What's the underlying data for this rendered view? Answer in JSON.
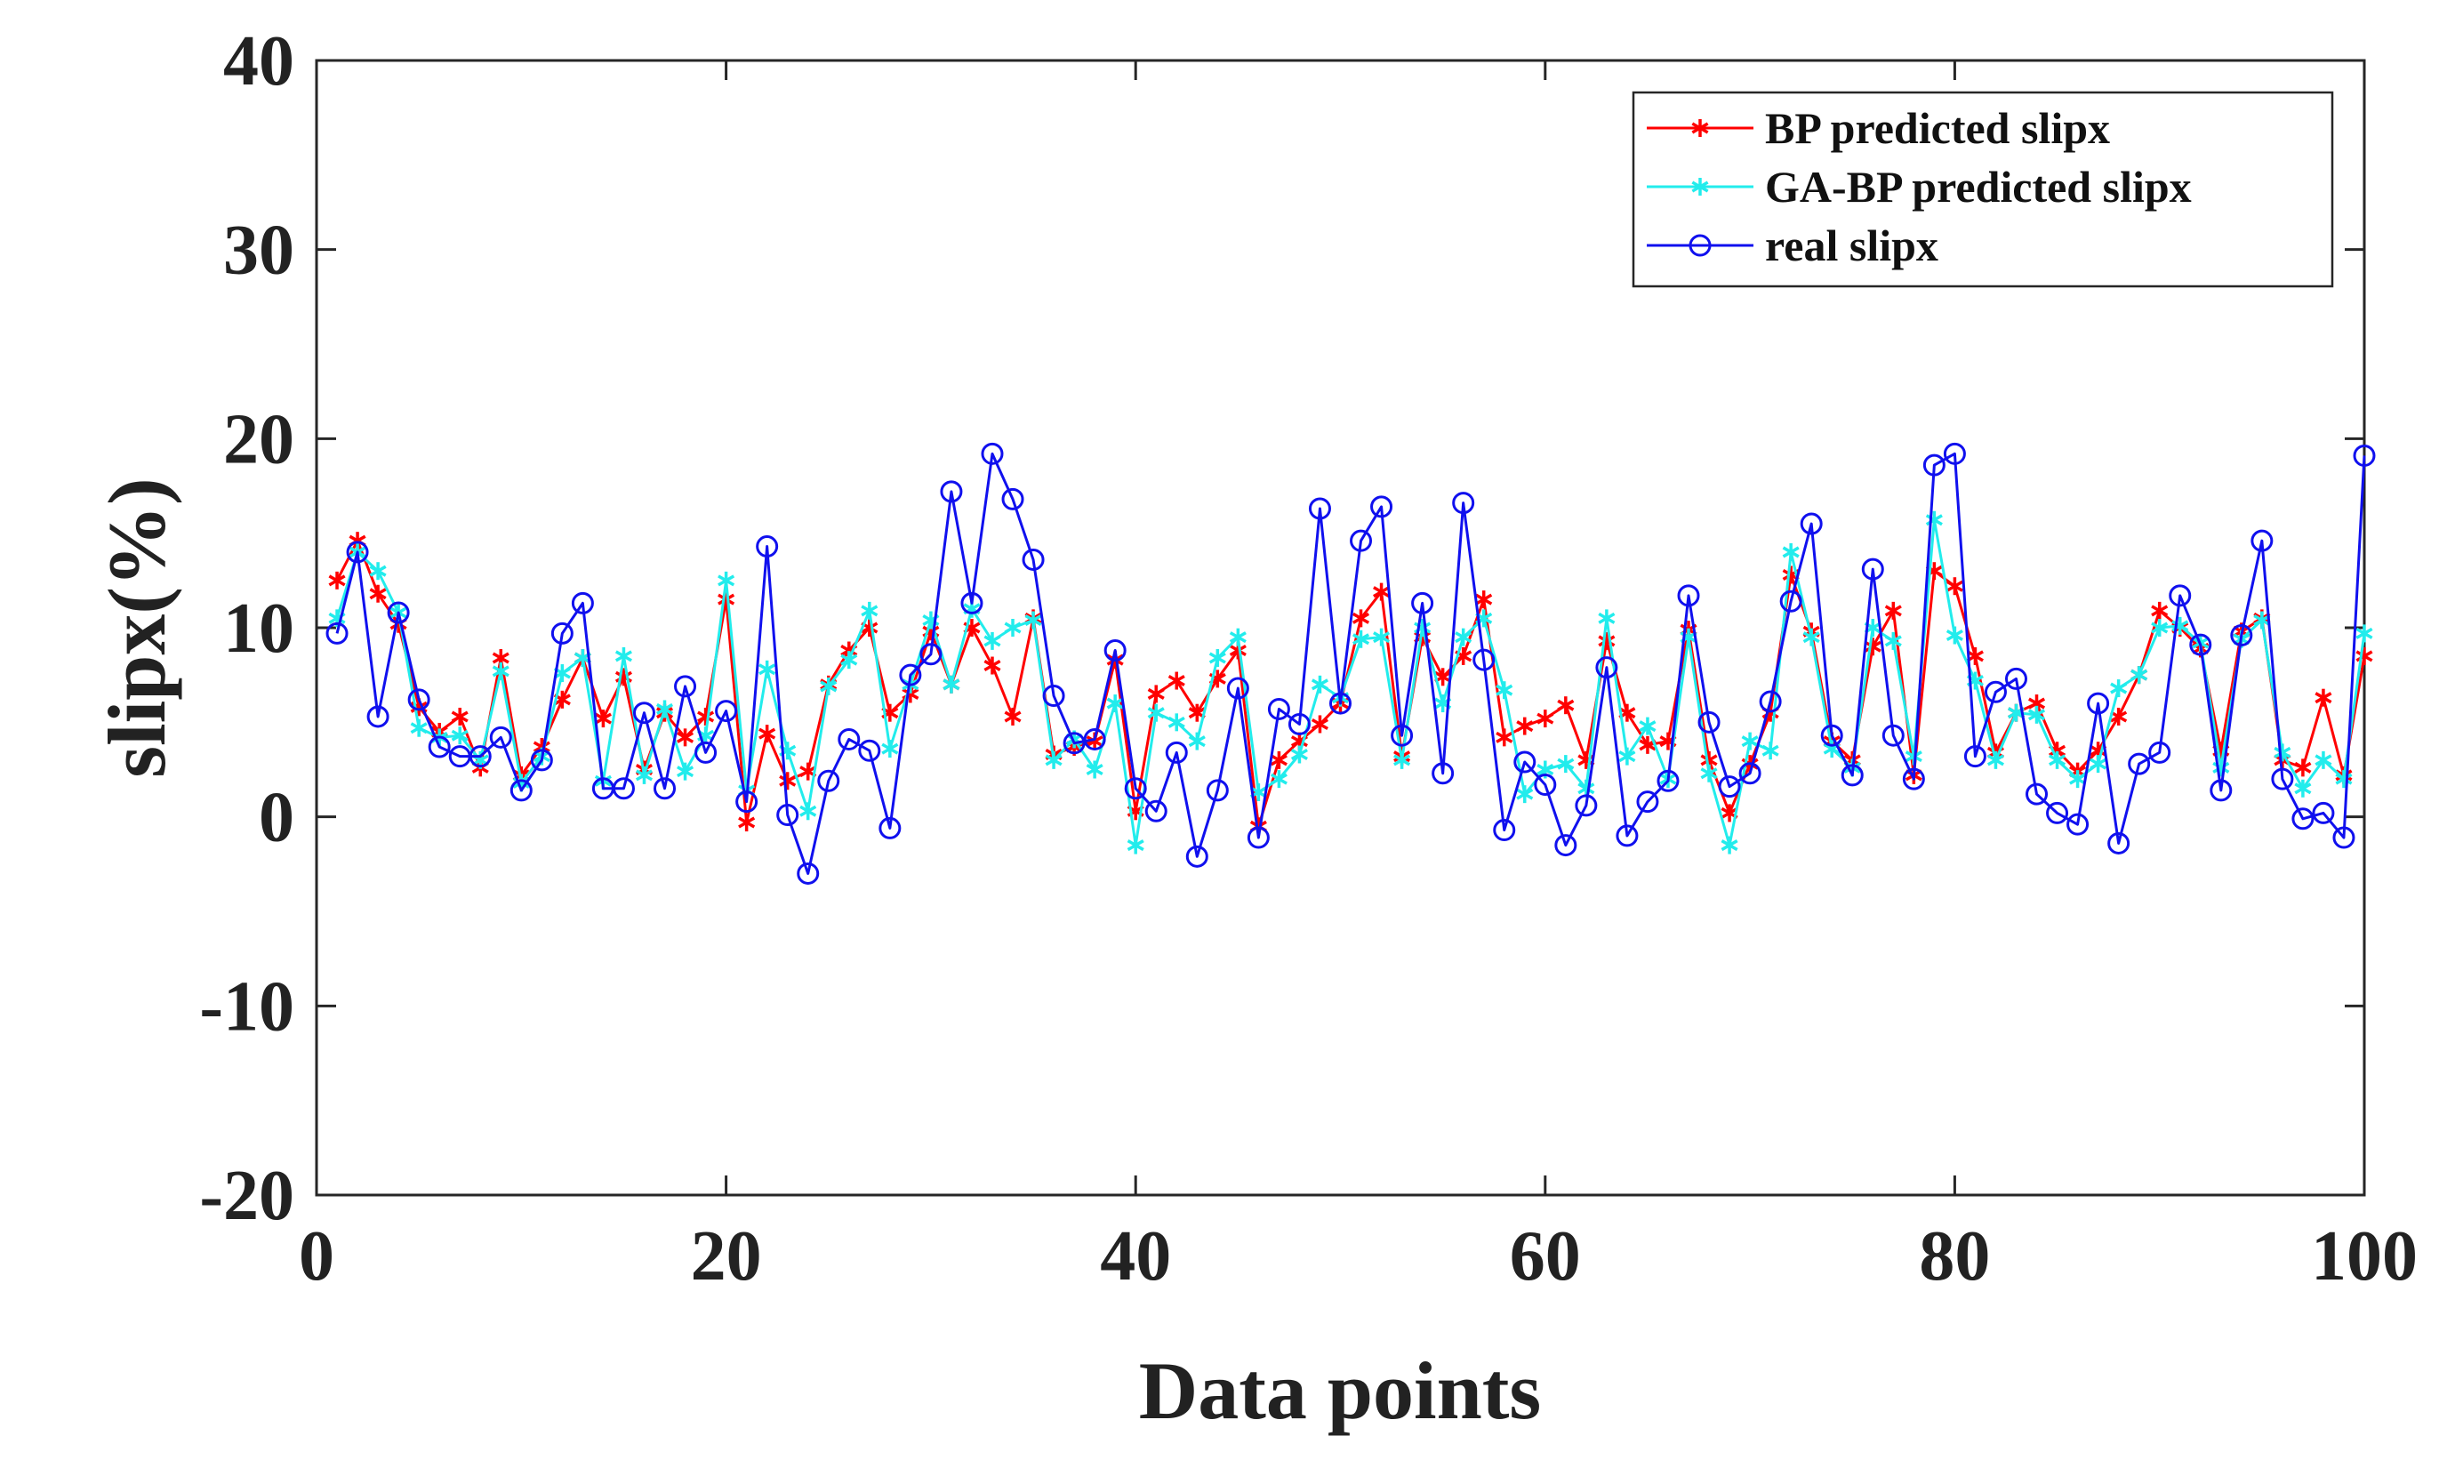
{
  "chart_data": {
    "type": "line",
    "title": "",
    "xlabel": "Data points",
    "ylabel": "slipx(%)",
    "xlim": [
      0,
      100
    ],
    "ylim": [
      -20,
      40
    ],
    "xticks": [
      0,
      20,
      40,
      60,
      80,
      100
    ],
    "yticks": [
      -20,
      -10,
      0,
      10,
      20,
      30,
      40
    ],
    "xtick_labels": [
      "0",
      "20",
      "40",
      "60",
      "80",
      "100"
    ],
    "ytick_labels": [
      "-20",
      "-10",
      "0",
      "10",
      "20",
      "30",
      "40"
    ],
    "grid": false,
    "legend_position": "top-right",
    "x": [
      1,
      2,
      3,
      4,
      5,
      6,
      7,
      8,
      9,
      10,
      11,
      12,
      13,
      14,
      15,
      16,
      17,
      18,
      19,
      20,
      21,
      22,
      23,
      24,
      25,
      26,
      27,
      28,
      29,
      30,
      31,
      32,
      33,
      34,
      35,
      36,
      37,
      38,
      39,
      40,
      41,
      42,
      43,
      44,
      45,
      46,
      47,
      48,
      49,
      50,
      51,
      52,
      53,
      54,
      55,
      56,
      57,
      58,
      59,
      60,
      61,
      62,
      63,
      64,
      65,
      66,
      67,
      68,
      69,
      70,
      71,
      72,
      73,
      74,
      75,
      76,
      77,
      78,
      79,
      80,
      81,
      82,
      83,
      84,
      85,
      86,
      87,
      88,
      89,
      90,
      91,
      92,
      93,
      94,
      95,
      96,
      97,
      98,
      99,
      100
    ],
    "series": [
      {
        "name": "BP predicted slipx",
        "color": "#ff0000",
        "marker": "asterisk",
        "values": [
          12.5,
          14.6,
          11.8,
          10.2,
          5.8,
          4.5,
          5.3,
          2.6,
          8.4,
          2.2,
          3.7,
          6.2,
          8.4,
          5.2,
          7.4,
          2.5,
          5.5,
          4.2,
          5.3,
          11.5,
          -0.3,
          4.4,
          1.9,
          2.4,
          7.0,
          8.8,
          10.0,
          5.5,
          6.5,
          9.8,
          7.0,
          10.0,
          8.0,
          5.3,
          10.5,
          3.3,
          3.7,
          4.0,
          8.3,
          0.3,
          6.5,
          7.2,
          5.5,
          7.3,
          8.8,
          -0.5,
          3.0,
          4.0,
          4.9,
          6.0,
          10.5,
          11.9,
          3.2,
          9.5,
          7.4,
          8.5,
          11.5,
          4.2,
          4.8,
          5.2,
          5.9,
          3.0,
          9.3,
          5.5,
          3.8,
          4.0,
          9.9,
          3.0,
          0.2,
          2.8,
          5.5,
          12.8,
          9.8,
          4.0,
          3.0,
          9.0,
          10.9,
          2.2,
          13.0,
          12.2,
          8.5,
          3.4,
          5.5,
          6.0,
          3.5,
          2.4,
          3.5,
          5.3,
          7.5,
          10.9,
          10.0,
          8.9,
          3.5,
          9.8,
          10.5,
          3.0,
          2.6,
          6.3,
          2.2,
          8.5
        ]
      },
      {
        "name": "GA-BP  predicted slipx",
        "color": "#22ecec",
        "marker": "asterisk",
        "values": [
          10.5,
          14.0,
          13.0,
          10.8,
          4.7,
          4.2,
          4.3,
          3.0,
          7.7,
          1.8,
          3.2,
          7.6,
          8.4,
          1.9,
          8.5,
          2.2,
          5.7,
          2.4,
          4.3,
          12.5,
          1.4,
          7.8,
          3.5,
          0.3,
          6.9,
          8.3,
          10.9,
          3.6,
          7.0,
          10.4,
          7.0,
          11.0,
          9.3,
          10.0,
          10.4,
          3.0,
          4.1,
          2.5,
          6.0,
          -1.5,
          5.5,
          5.0,
          4.0,
          8.4,
          9.5,
          1.3,
          2.0,
          3.3,
          7.0,
          6.3,
          9.4,
          9.5,
          3.0,
          10.0,
          6.0,
          9.5,
          10.5,
          6.7,
          1.2,
          2.5,
          2.8,
          1.5,
          10.5,
          3.2,
          4.8,
          2.0,
          9.5,
          2.3,
          -1.5,
          4.0,
          3.5,
          14.0,
          9.5,
          3.6,
          2.6,
          10.0,
          9.3,
          3.2,
          15.7,
          9.6,
          7.2,
          3.0,
          5.5,
          5.4,
          3.0,
          2.0,
          2.8,
          6.8,
          7.5,
          10.0,
          10.1,
          9.2,
          2.6,
          9.4,
          10.4,
          3.4,
          1.5,
          3.0,
          2.0,
          9.7
        ]
      },
      {
        "name": "real slipx",
        "color": "#1010ee",
        "marker": "circle",
        "values": [
          9.7,
          14.0,
          5.3,
          10.8,
          6.2,
          3.7,
          3.2,
          3.2,
          4.2,
          1.4,
          3.0,
          9.7,
          11.3,
          1.5,
          1.5,
          5.5,
          1.5,
          6.9,
          3.4,
          5.6,
          0.8,
          14.3,
          0.1,
          -3.0,
          1.9,
          4.1,
          3.5,
          -0.6,
          7.5,
          8.6,
          17.2,
          11.3,
          19.2,
          16.8,
          13.6,
          6.4,
          3.9,
          4.1,
          8.8,
          1.5,
          0.3,
          3.4,
          -2.1,
          1.4,
          6.8,
          -1.1,
          5.7,
          4.9,
          16.3,
          6.0,
          14.6,
          16.4,
          4.3,
          11.3,
          2.3,
          16.6,
          8.3,
          -0.7,
          2.9,
          1.7,
          -1.5,
          0.6,
          7.9,
          -1.0,
          0.8,
          1.9,
          11.7,
          5.0,
          1.6,
          2.3,
          6.1,
          11.4,
          15.5,
          4.3,
          2.2,
          13.1,
          4.3,
          2.0,
          18.6,
          19.2,
          3.2,
          6.6,
          7.3,
          1.2,
          0.2,
          -0.4,
          6.0,
          -1.4,
          2.8,
          3.4,
          11.7,
          9.1,
          1.4,
          9.6,
          14.6,
          2.0,
          -0.1,
          0.2,
          -1.1,
          19.1
        ]
      }
    ]
  }
}
